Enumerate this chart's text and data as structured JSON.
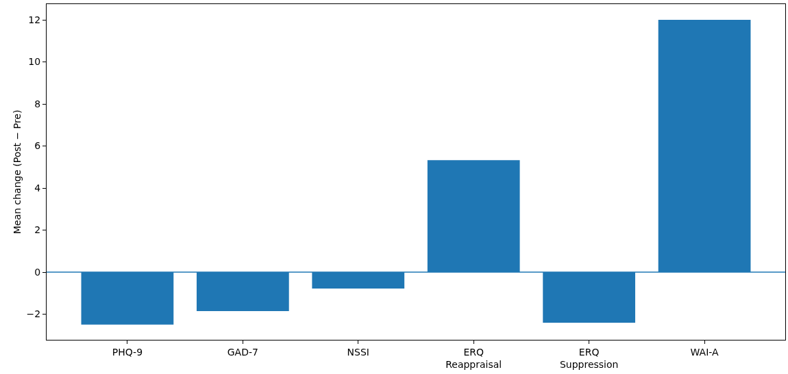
{
  "chart_data": {
    "type": "bar",
    "ylabel": "Mean change (Post − Pre)",
    "categories": [
      "PHQ-9",
      "GAD-7",
      "NSSI",
      "ERQ\nReappraisal",
      "ERQ\nSuppression",
      "WAI-A"
    ],
    "values": [
      -2.5,
      -1.85,
      -0.78,
      5.33,
      -2.41,
      12.0
    ],
    "color": "#1f77b4",
    "ylim": [
      -3.22,
      12.75
    ],
    "yticks": [
      {
        "value": -2,
        "label": "−2"
      },
      0,
      2,
      4,
      6,
      8,
      10,
      12
    ],
    "ref_lines": [
      {
        "axis": "y",
        "value": 0,
        "color": "#1f77b4"
      }
    ],
    "grid": false
  }
}
